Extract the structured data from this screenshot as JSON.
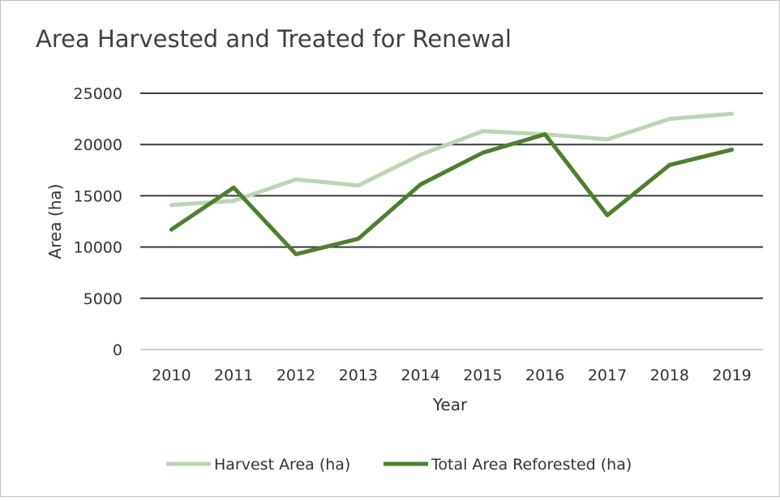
{
  "chart_data": {
    "type": "line",
    "title": "Area Harvested and Treated for Renewal",
    "xlabel": "Year",
    "ylabel": "Area (ha)",
    "categories": [
      "2010",
      "2011",
      "2012",
      "2013",
      "2014",
      "2015",
      "2016",
      "2017",
      "2018",
      "2019"
    ],
    "ylim": [
      0,
      25000
    ],
    "yticks": [
      0,
      5000,
      10000,
      15000,
      20000,
      25000
    ],
    "grid": true,
    "legend_position": "bottom",
    "series": [
      {
        "name": "Harvest Area (ha)",
        "color": "#bdd5b5",
        "values": [
          14100,
          14500,
          16600,
          16000,
          19000,
          21300,
          21000,
          20500,
          22500,
          23000
        ]
      },
      {
        "name": "Total Area Reforested (ha)",
        "color": "#4e7f2e",
        "values": [
          11700,
          15800,
          9300,
          10800,
          16100,
          19200,
          21000,
          13100,
          18000,
          19500
        ]
      }
    ]
  }
}
